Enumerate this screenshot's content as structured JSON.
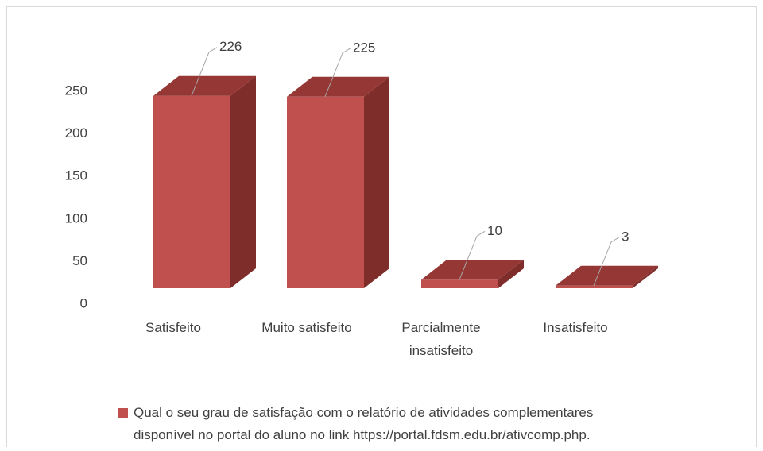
{
  "chart_data": {
    "type": "bar3d",
    "categories": [
      "Satisfeito",
      "Muito satisfeito",
      "Parcialmente insatisfeito",
      "Insatisfeito"
    ],
    "series": [
      {
        "name": "Qual o seu grau de satisfação com o relatório de atividades complementares disponível no portal do aluno no link https://portal.fdsm.edu.br/ativcomp.php.",
        "color": "#c0504d",
        "values": [
          226,
          225,
          10,
          3
        ]
      }
    ],
    "ylim": [
      0,
      250
    ],
    "yticks": [
      0,
      50,
      100,
      150,
      200,
      250
    ],
    "legend": "bottom"
  }
}
